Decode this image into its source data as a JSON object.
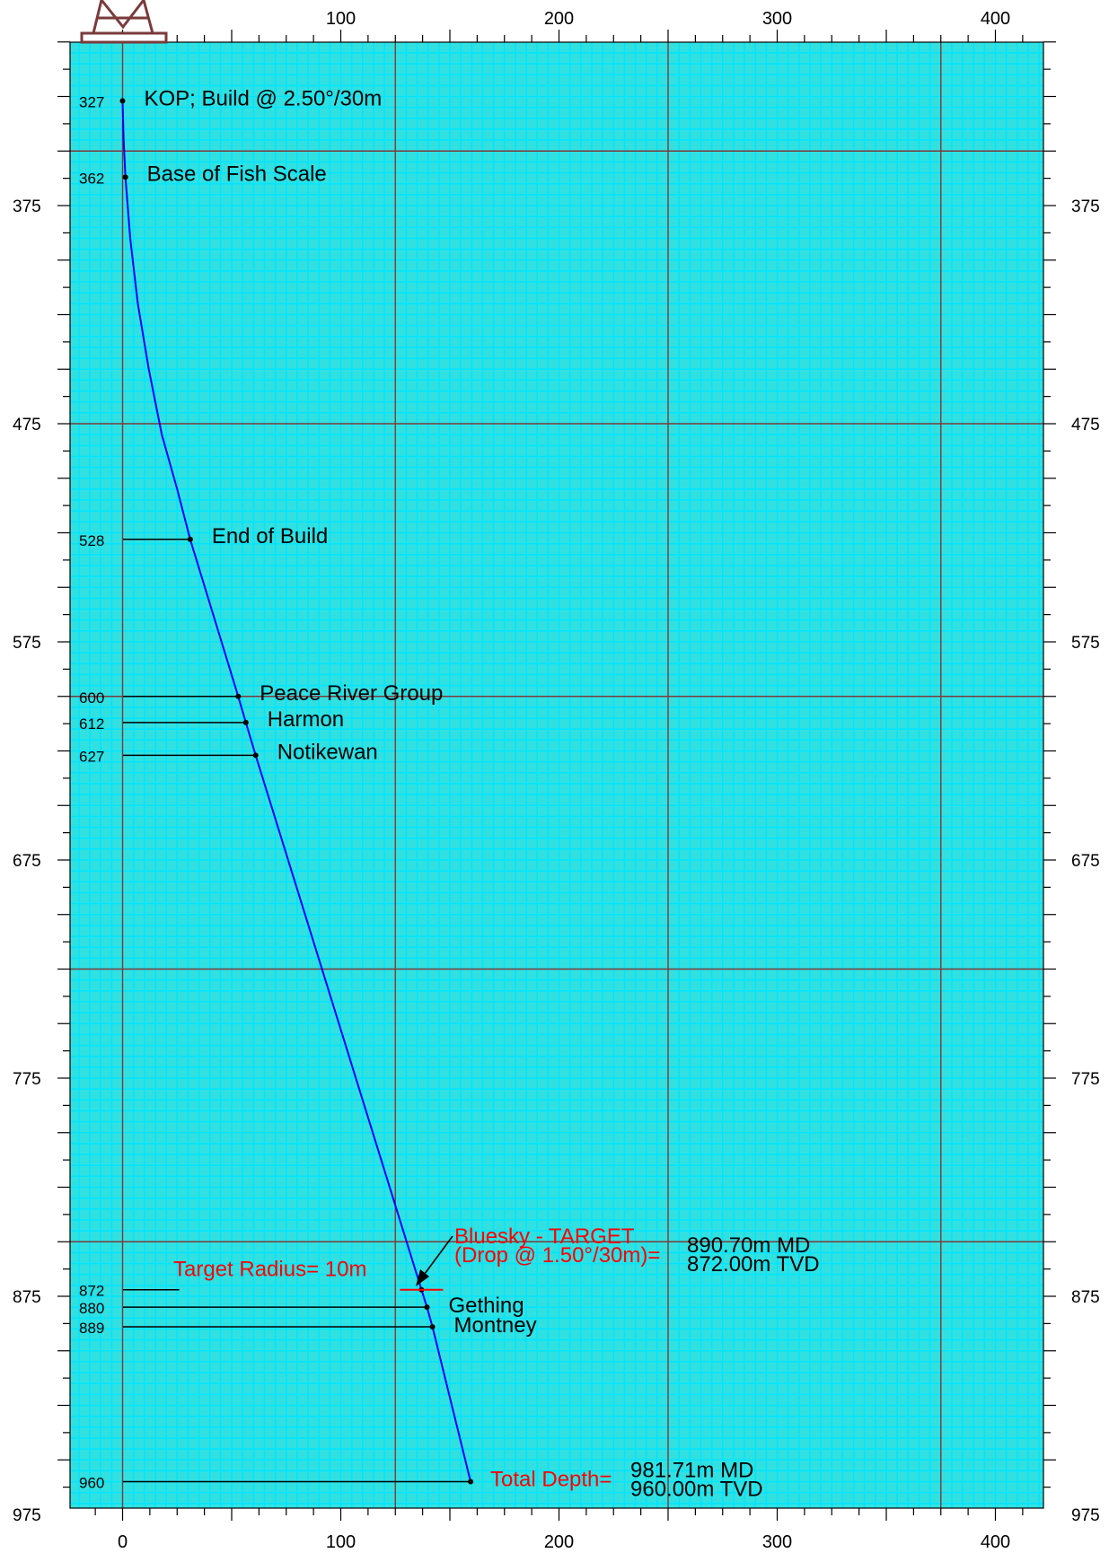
{
  "colors": {
    "grid_minor": "#00e5ff",
    "grid_major": "#7a3b3b",
    "background": "#33e0e0",
    "wellpath": "#0000ff",
    "text": "#000000",
    "accent": "#ff0000",
    "rig": "#7a3b3b"
  },
  "chart_data": {
    "type": "line",
    "title": "",
    "xlabel": "",
    "ylabel": "",
    "xlim": [
      -25,
      425
    ],
    "ylim": [
      975,
      300
    ],
    "x_ticks_labeled": [
      "0",
      "100",
      "200",
      "300",
      "400"
    ],
    "y_ticks_labeled": [
      "375",
      "475",
      "575",
      "675",
      "775",
      "875",
      "975"
    ],
    "grid": true,
    "series": [
      {
        "points": [
          {
            "x": 0,
            "y": 327
          },
          {
            "x": 0.5,
            "y": 345
          },
          {
            "x": 1.3,
            "y": 362
          },
          {
            "x": 3.5,
            "y": 390
          },
          {
            "x": 7,
            "y": 420
          },
          {
            "x": 12,
            "y": 450
          },
          {
            "x": 18,
            "y": 480
          },
          {
            "x": 25,
            "y": 505
          },
          {
            "x": 31,
            "y": 528
          },
          {
            "x": 53,
            "y": 600
          },
          {
            "x": 56.5,
            "y": 612
          },
          {
            "x": 61,
            "y": 627
          },
          {
            "x": 137,
            "y": 872
          },
          {
            "x": 139.5,
            "y": 880
          },
          {
            "x": 142,
            "y": 889
          },
          {
            "x": 159.5,
            "y": 960
          }
        ]
      }
    ],
    "formations": [
      {
        "depth": 327,
        "label": "KOP; Build @ 2.50°/30m",
        "x": 0
      },
      {
        "depth": 362,
        "label": "Base of Fish Scale",
        "x": 1.3
      },
      {
        "depth": 528,
        "label": "End of Build",
        "x": 31
      },
      {
        "depth": 600,
        "label": "Peace River Group",
        "x": 53
      },
      {
        "depth": 612,
        "label": "Harmon",
        "x": 56.5
      },
      {
        "depth": 627,
        "label": "Notikewan",
        "x": 61
      },
      {
        "depth": 872,
        "label": "",
        "x": 137
      },
      {
        "depth": 880,
        "label": "Gething",
        "x": 139.5
      },
      {
        "depth": 889,
        "label": "Montney",
        "x": 142
      },
      {
        "depth": 960,
        "label": "",
        "x": 159.5
      }
    ],
    "target": {
      "radius_label": "Target Radius= 10m",
      "name_line1": "Bluesky - TARGET",
      "name_line2": "(Drop @ 1.50°/30m)=",
      "md": "890.70m MD",
      "tvd": "872.00m TVD"
    },
    "total_depth": {
      "label": "Total Depth=",
      "md": "981.71m MD",
      "tvd": "960.00m TVD"
    }
  }
}
